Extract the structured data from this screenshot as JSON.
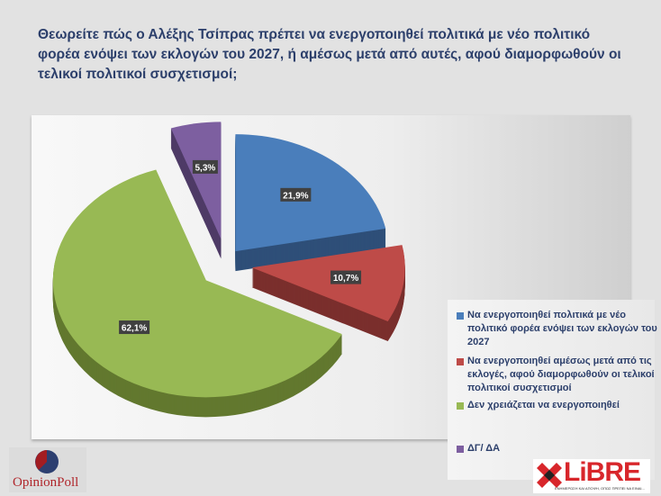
{
  "title": "Θεωρείτε πώς ο Αλέξης Τσίπρας πρέπει να ενεργοποιηθεί πολιτικά με νέο πολιτικό φορέα ενόψει των εκλογών του 2027, ή αμέσως μετά από αυτές, αφού διαμορφωθούν οι τελικοί πολιτικοί συσχετισμοί;",
  "chart_data": {
    "type": "pie",
    "style": "3d-exploded",
    "legend_position": "right",
    "categories": [
      "Να ενεργοποιηθεί πολιτικά με νέο πολιτικό φορέα ενόψει των εκλογών του 2027",
      "Να ενεργοποιηθεί αμέσως μετά από τις εκλογές, αφού διαμορφωθούν οι τελικοί πολιτικοί συσχετισμοί",
      "Δεν χρειάζεται να ενεργοποιηθεί",
      "ΔΓ/ ΔΑ"
    ],
    "values": [
      21.9,
      10.7,
      62.1,
      5.3
    ],
    "data_labels": [
      "21,9%",
      "10,7%",
      "62,1%",
      "5,3%"
    ],
    "colors": [
      "#4a7ebb",
      "#be4b48",
      "#98b954",
      "#7d5fa0"
    ],
    "side_colors": [
      "#2e4f78",
      "#7a2f2d",
      "#62782f",
      "#4e3b66"
    ]
  },
  "logos": {
    "left": "OpinionPoll",
    "right": "LiBRE",
    "right_tagline": "ΕΝΗΜΕΡΩΣΗ ΚΑΙ ΑΠΟΨΗ, ΟΠΩΣ ΠΡΕΠΕΙ ΝΑ ΕΙΝΑΙ..."
  }
}
